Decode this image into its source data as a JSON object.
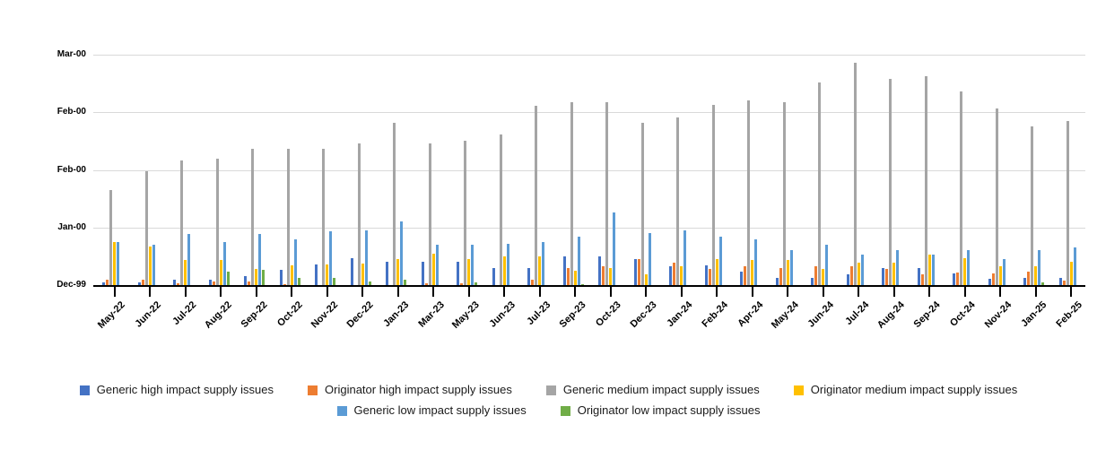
{
  "chart_data": {
    "type": "bar",
    "title": "",
    "categories": [
      "May-22",
      "Jun-22",
      "Jul-22",
      "Aug-22",
      "Sep-22",
      "Oct-22",
      "Nov-22",
      "Dec-22",
      "Jan-23",
      "Mar-23",
      "May-23",
      "Jun-23",
      "Jul-23",
      "Sep-23",
      "Oct-23",
      "Dec-23",
      "Jan-24",
      "Feb-24",
      "Apr-24",
      "May-24",
      "Jun-24",
      "Jul-24",
      "Aug-24",
      "Sep-24",
      "Oct-24",
      "Nov-24",
      "Jan-25",
      "Feb-25"
    ],
    "series": [
      {
        "name": "Generic high impact supply issues",
        "color": "#4472C4",
        "values": [
          1.2,
          1.2,
          2.3,
          2.3,
          3.9,
          6.8,
          9.1,
          11.7,
          10,
          10,
          10,
          7.4,
          7.2,
          12.4,
          12.4,
          11.1,
          8.2,
          8.5,
          5.9,
          3.3,
          3.3,
          4.8,
          7.2,
          7.2,
          5.1,
          2.7,
          3.3,
          3.3
        ]
      },
      {
        "name": "Originator high impact supply issues",
        "color": "#ED7D31",
        "values": [
          2.3,
          2.5,
          0.9,
          1.4,
          1.4,
          0.4,
          0,
          0,
          0,
          0.9,
          0.9,
          0,
          2.2,
          7.2,
          8.2,
          11.1,
          9.9,
          6.9,
          8.2,
          7.2,
          8.2,
          8.2,
          6.9,
          4.8,
          5.3,
          5,
          5.9,
          2
        ]
      },
      {
        "name": "Generic medium impact supply issues",
        "color": "#A5A5A5",
        "values": [
          41.4,
          49.3,
          54,
          55,
          59,
          59,
          59,
          61.4,
          70.6,
          61.4,
          62.5,
          65.4,
          77.9,
          79.2,
          79.4,
          70.6,
          72.7,
          78.1,
          80.1,
          79.2,
          87.9,
          96.6,
          89.5,
          90.5,
          84,
          76.8,
          68.8,
          71.2
        ]
      },
      {
        "name": "Originator medium impact supply issues",
        "color": "#FFC000",
        "values": [
          18.5,
          16.7,
          11,
          11,
          7,
          8.5,
          9.1,
          9.4,
          11.1,
          13.5,
          11.1,
          12.4,
          12.4,
          6.1,
          7.2,
          4.8,
          8.1,
          11.1,
          10.8,
          10.8,
          6.9,
          9.6,
          9.9,
          13.4,
          11.6,
          8.2,
          8.2,
          10
        ]
      },
      {
        "name": "Generic low impact supply issues",
        "color": "#5B9BD5",
        "values": [
          18.8,
          17.5,
          22,
          18.5,
          22.1,
          19.9,
          23.4,
          23.7,
          27.6,
          17.5,
          17.6,
          17.8,
          18.5,
          21.2,
          31.5,
          22.4,
          23.7,
          21.2,
          19.9,
          15,
          17.6,
          13.4,
          15,
          13.4,
          15.2,
          11.1,
          15,
          16.3
        ]
      },
      {
        "name": "Originator low impact supply issues",
        "color": "#70AD47",
        "values": [
          0,
          0,
          0,
          6,
          6.8,
          3.3,
          3.3,
          1.7,
          2.3,
          0,
          1.2,
          0,
          0,
          0.5,
          0,
          0,
          0,
          0,
          0,
          0,
          0,
          0,
          0,
          0,
          0,
          0,
          1,
          0
        ]
      }
    ],
    "y_axis": {
      "tick_labels_bottom_to_top": [
        "Dec-99",
        "Jan-00",
        "Feb-00",
        "Feb-00",
        "Mar-00"
      ],
      "min": 0,
      "max": 100,
      "gridline_step": 25
    },
    "x_axis": {
      "label_rotation_deg": -45
    },
    "grid": true,
    "legend": {
      "position": "bottom",
      "rows": [
        [
          0,
          1,
          2,
          3
        ],
        [
          4,
          5
        ]
      ]
    }
  },
  "colors": {
    "background": "#FFFFFF",
    "gridline": "#D9D9D9",
    "axis_line": "#000000",
    "tick_label_text": "#000000",
    "legend_text": "#1A1A1A"
  }
}
